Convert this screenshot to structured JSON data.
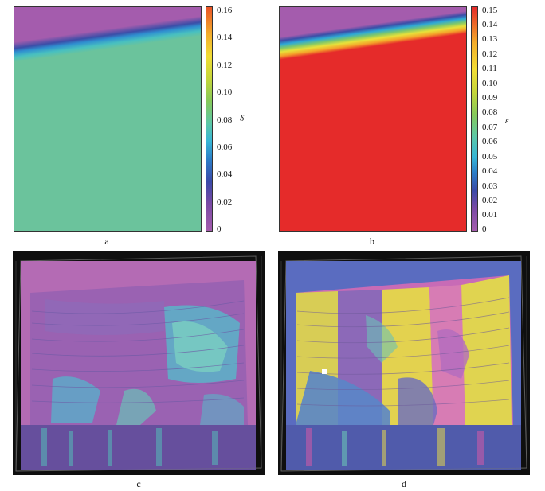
{
  "panels": {
    "a": {
      "caption": "a",
      "colorbar_label": "δ",
      "ticks": [
        "0.16",
        "0.14",
        "0.12",
        "0.10",
        "0.08",
        "0.06",
        "0.04",
        "0.02",
        "0"
      ]
    },
    "b": {
      "caption": "b",
      "colorbar_label": "ε",
      "ticks": [
        "0.15",
        "0.14",
        "0.13",
        "0.12",
        "0.11",
        "0.10",
        "0.09",
        "0.08",
        "0.07",
        "0.06",
        "0.05",
        "0.04",
        "0.03",
        "0.02",
        "0.01",
        "0"
      ]
    },
    "c": {
      "caption": "c"
    },
    "d": {
      "caption": "d"
    }
  },
  "colors": {
    "purple": "#a45cad",
    "teal": "#6bc39c",
    "red": "#e52b2a",
    "yellow": "#e6d94a",
    "blue": "#4a6fc2"
  }
}
